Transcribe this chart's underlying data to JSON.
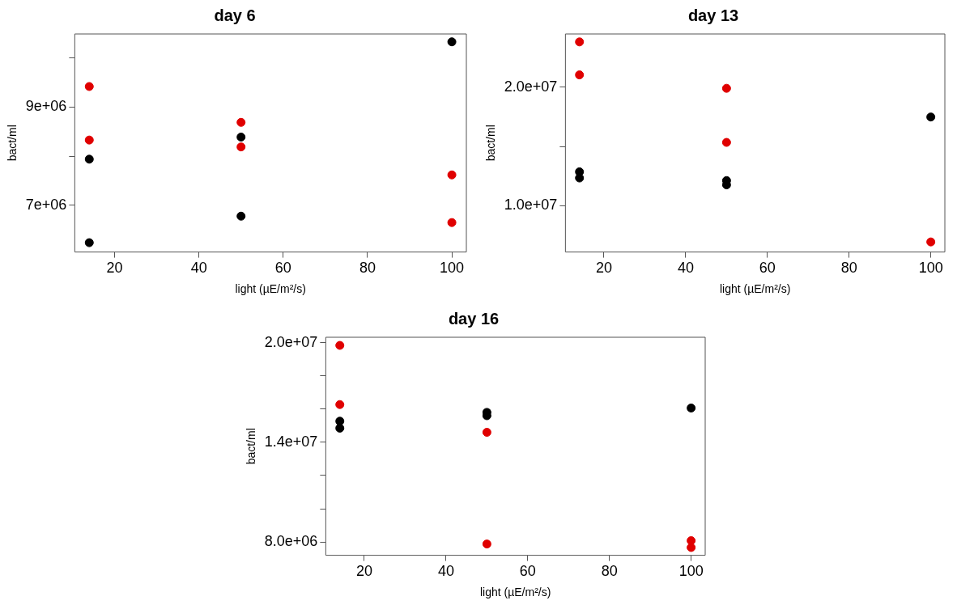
{
  "chart_data": [
    {
      "type": "scatter",
      "title": "day 6",
      "xlabel": "light (µE/m²/s)",
      "ylabel": "bact/ml",
      "xlim": [
        10.56,
        103.44
      ],
      "xticks": [
        20,
        40,
        60,
        80,
        100
      ],
      "ylim": [
        6050000,
        10490000
      ],
      "yticks": [
        {
          "value": 7000000,
          "label": "7e+06"
        },
        {
          "value": 8000000,
          "label": null
        },
        {
          "value": 9000000,
          "label": "9e+06"
        },
        {
          "value": 10000000,
          "label": null
        }
      ],
      "grid": false,
      "legend": false,
      "marker": "circle",
      "series": [
        {
          "color": "#000000",
          "x": [
            14,
            14,
            50,
            50,
            100
          ],
          "values": [
            7940000,
            6240000,
            8390000,
            6780000,
            10330000
          ]
        },
        {
          "color": "#e00000",
          "x": [
            14,
            14,
            50,
            50,
            100,
            100
          ],
          "values": [
            9420000,
            8330000,
            8690000,
            8190000,
            7620000,
            6650000
          ]
        }
      ]
    },
    {
      "type": "scatter",
      "title": "day 13",
      "xlabel": "light (µE/m²/s)",
      "ylabel": "bact/ml",
      "xlim": [
        10.56,
        103.44
      ],
      "xticks": [
        20,
        40,
        60,
        80,
        100
      ],
      "ylim": [
        6100000,
        24480000
      ],
      "yticks": [
        {
          "value": 10000000,
          "label": "1.0e+07"
        },
        {
          "value": 15000000,
          "label": null
        },
        {
          "value": 20000000,
          "label": "2.0e+07"
        }
      ],
      "grid": false,
      "legend": false,
      "marker": "circle",
      "series": [
        {
          "color": "#000000",
          "x": [
            14,
            14,
            50,
            50,
            100
          ],
          "values": [
            12860000,
            12340000,
            12120000,
            11760000,
            17480000
          ]
        },
        {
          "color": "#e00000",
          "x": [
            14,
            14,
            50,
            50,
            100
          ],
          "values": [
            23810000,
            21030000,
            19900000,
            15340000,
            6950000
          ]
        }
      ]
    },
    {
      "type": "scatter",
      "title": "day 16",
      "xlabel": "light (µE/m²/s)",
      "ylabel": "bact/ml",
      "xlim": [
        10.56,
        103.44
      ],
      "xticks": [
        20,
        40,
        60,
        80,
        100
      ],
      "ylim": [
        7200000,
        20320000
      ],
      "yticks": [
        {
          "value": 8000000,
          "label": "8.0e+06"
        },
        {
          "value": 10000000,
          "label": null
        },
        {
          "value": 12000000,
          "label": null
        },
        {
          "value": 14000000,
          "label": "1.4e+07"
        },
        {
          "value": 16000000,
          "label": null
        },
        {
          "value": 18000000,
          "label": null
        },
        {
          "value": 20000000,
          "label": "2.0e+07"
        }
      ],
      "grid": false,
      "legend": false,
      "marker": "circle",
      "series": [
        {
          "color": "#000000",
          "x": [
            14,
            14,
            50,
            50,
            100
          ],
          "values": [
            15270000,
            14850000,
            15800000,
            15600000,
            16060000
          ]
        },
        {
          "color": "#e00000",
          "x": [
            14,
            14,
            50,
            50,
            100,
            100
          ],
          "values": [
            19830000,
            16270000,
            14600000,
            7880000,
            8080000,
            7670000
          ]
        }
      ]
    }
  ]
}
